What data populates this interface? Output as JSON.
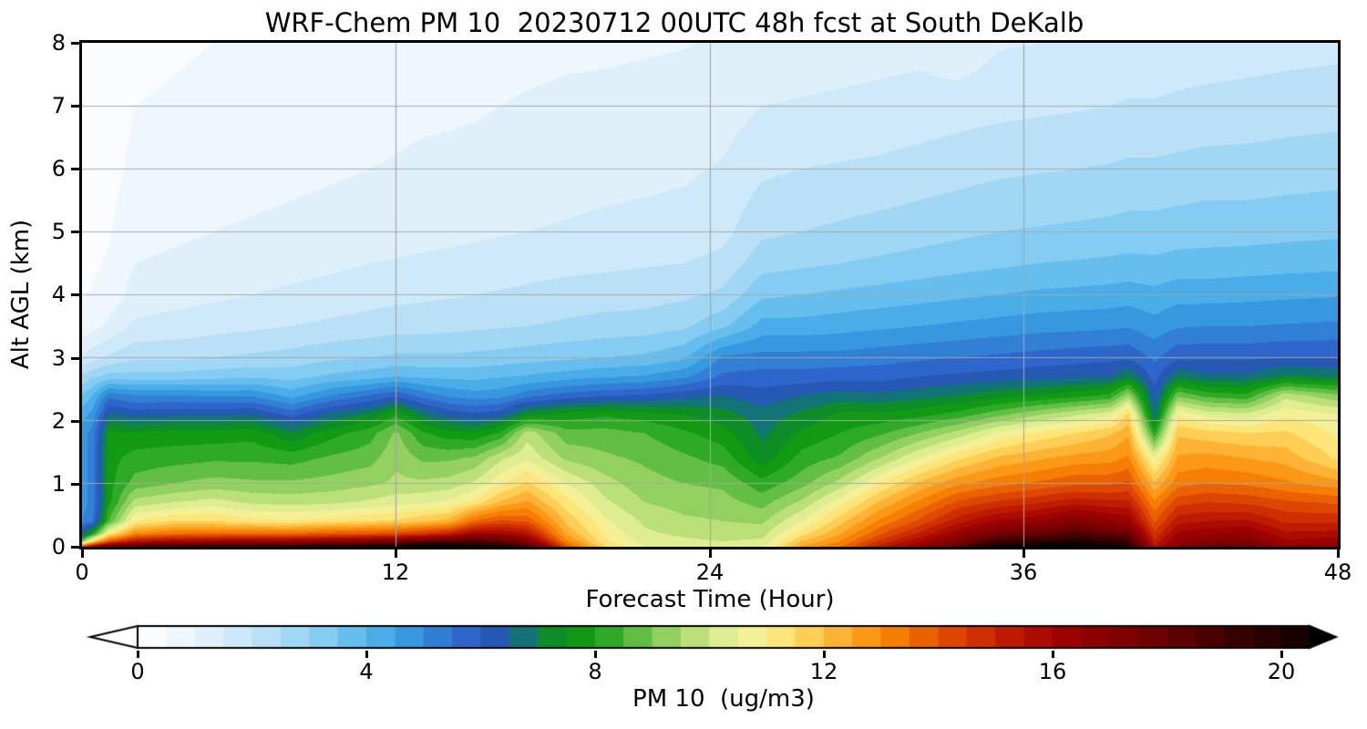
{
  "figure": {
    "title": "WRF-Chem PM 10  20230712 00UTC 48h fcst at South DeKalb"
  },
  "axes": {
    "x": {
      "label": "Forecast Time (Hour)",
      "tick_labels": [
        "0",
        "12",
        "24",
        "36",
        "48"
      ]
    },
    "y": {
      "label": "Alt AGL (km)",
      "tick_labels": [
        "0",
        "1",
        "2",
        "3",
        "4",
        "5",
        "6",
        "7",
        "8"
      ]
    }
  },
  "colorbar": {
    "label": "PM 10  (ug/m3)",
    "tick_labels": [
      "0",
      "4",
      "8",
      "12",
      "16",
      "20"
    ]
  },
  "chart_data": {
    "type": "heatmap",
    "subtype": "filled-contour-time-height",
    "title": "WRF-Chem PM 10  20230712 00UTC 48h fcst at South DeKalb",
    "xlabel": "Forecast Time (Hour)",
    "ylabel": "Alt AGL (km)",
    "xlim": [
      0,
      48
    ],
    "ylim": [
      0,
      8
    ],
    "xticks": [
      0,
      12,
      24,
      36,
      48
    ],
    "yticks": [
      0,
      1,
      2,
      3,
      4,
      5,
      6,
      7,
      8
    ],
    "grid_x": [
      12,
      24,
      36
    ],
    "grid_y": [
      1,
      2,
      3,
      4,
      5,
      6,
      7
    ],
    "colorbar": {
      "label": "PM 10  (ug/m3)",
      "units": "ug/m3",
      "ticks": [
        0,
        4,
        8,
        12,
        16,
        20
      ],
      "vmin": 0,
      "vmax": 20.5,
      "band_width": 0.5,
      "extend": "both"
    },
    "time_hours": [
      0,
      0.4,
      1,
      2,
      3.5,
      5,
      6.5,
      8,
      9.5,
      11,
      12,
      13,
      14,
      15,
      16,
      17,
      18.5,
      20,
      21.5,
      23,
      24.5,
      26,
      27.5,
      29,
      30.5,
      32,
      33.5,
      35,
      36.5,
      38,
      39.3,
      40,
      41,
      41.9,
      43,
      44.5,
      46,
      48
    ],
    "alt_km": [
      0,
      0.08,
      0.2,
      0.4,
      0.7,
      1.0,
      1.4,
      1.8,
      2.1,
      2.4,
      2.7,
      3.0,
      3.5,
      4.0,
      4.5,
      5.0,
      6.0,
      7.0,
      8.0
    ],
    "pm10_ugm3": [
      [
        14.0,
        9.0,
        6.5,
        5.0,
        4.8,
        4.8,
        4.8,
        4.8,
        4.3,
        3.6,
        2.6,
        1.6,
        0.7,
        0.45,
        0.35,
        0.3,
        0.22,
        0.18,
        0.12
      ],
      [
        16.0,
        11.5,
        8.0,
        5.5,
        5.2,
        5.2,
        5.2,
        5.2,
        4.7,
        4.0,
        2.9,
        1.8,
        0.85,
        0.55,
        0.42,
        0.36,
        0.28,
        0.22,
        0.16
      ],
      [
        17.5,
        14.0,
        11.0,
        8.5,
        7.8,
        7.8,
        7.8,
        7.6,
        6.6,
        5.3,
        3.2,
        2.1,
        1.1,
        0.7,
        0.55,
        0.45,
        0.35,
        0.28,
        0.2
      ],
      [
        18.5,
        15.5,
        13.0,
        11.0,
        9.7,
        8.7,
        8.2,
        7.6,
        6.3,
        5.0,
        3.2,
        2.4,
        1.6,
        1.2,
        1.0,
        0.8,
        0.6,
        0.5,
        0.4
      ],
      [
        19.0,
        16.0,
        13.5,
        11.5,
        10.0,
        9.0,
        8.3,
        7.7,
        6.4,
        5.0,
        3.2,
        2.4,
        1.7,
        1.3,
        1.1,
        0.9,
        0.7,
        0.55,
        0.45
      ],
      [
        19.2,
        16.2,
        13.6,
        11.5,
        10.2,
        9.2,
        8.4,
        7.7,
        6.4,
        4.9,
        3.3,
        2.5,
        1.8,
        1.4,
        1.2,
        1.0,
        0.8,
        0.6,
        0.5
      ],
      [
        19.5,
        16.5,
        13.6,
        11.2,
        9.9,
        9.1,
        8.4,
        7.8,
        6.5,
        4.9,
        3.4,
        2.6,
        1.9,
        1.5,
        1.25,
        1.05,
        0.85,
        0.65,
        0.52
      ],
      [
        19.5,
        16.5,
        13.6,
        11.1,
        9.8,
        9.1,
        8.3,
        7.1,
        5.8,
        4.3,
        3.3,
        2.7,
        2.0,
        1.6,
        1.3,
        1.1,
        0.9,
        0.7,
        0.55
      ],
      [
        19.8,
        16.8,
        13.9,
        11.3,
        9.9,
        9.2,
        8.6,
        7.8,
        6.6,
        5.0,
        3.6,
        2.9,
        2.1,
        1.7,
        1.4,
        1.15,
        0.95,
        0.75,
        0.6
      ],
      [
        20.2,
        17.2,
        14.0,
        11.5,
        10.1,
        9.4,
        8.8,
        8.3,
        7.1,
        5.5,
        3.8,
        3.0,
        2.2,
        1.8,
        1.5,
        1.2,
        1.0,
        0.8,
        0.65
      ],
      [
        20.5,
        17.5,
        14.2,
        11.6,
        10.3,
        9.6,
        9.4,
        9.1,
        7.9,
        5.9,
        4.0,
        3.1,
        2.3,
        1.85,
        1.55,
        1.25,
        1.05,
        0.85,
        0.7
      ],
      [
        21.0,
        18.2,
        14.6,
        11.9,
        10.4,
        9.6,
        8.9,
        8.1,
        6.9,
        5.3,
        3.9,
        3.1,
        2.3,
        1.9,
        1.6,
        1.3,
        1.1,
        0.9,
        0.72
      ],
      [
        21.0,
        18.4,
        15.1,
        12.2,
        10.6,
        9.7,
        8.9,
        7.7,
        6.3,
        4.9,
        3.85,
        3.1,
        2.35,
        1.95,
        1.65,
        1.35,
        1.12,
        0.92,
        0.75
      ],
      [
        20.6,
        18.6,
        16.1,
        13.6,
        11.2,
        10.1,
        9.1,
        7.6,
        6.1,
        4.7,
        3.85,
        3.15,
        2.4,
        2.0,
        1.7,
        1.4,
        1.15,
        0.95,
        0.78
      ],
      [
        20.0,
        18.1,
        16.1,
        14.1,
        12.1,
        10.9,
        9.9,
        8.1,
        6.3,
        4.8,
        3.95,
        3.2,
        2.45,
        2.05,
        1.75,
        1.45,
        1.2,
        1.0,
        0.8
      ],
      [
        19.0,
        17.1,
        15.6,
        13.9,
        12.6,
        11.6,
        10.4,
        9.8,
        7.3,
        5.3,
        4.05,
        3.3,
        2.5,
        2.1,
        1.8,
        1.5,
        1.25,
        1.05,
        0.85
      ],
      [
        14.0,
        13.1,
        12.4,
        11.9,
        11.2,
        10.5,
        9.4,
        8.7,
        7.7,
        5.7,
        4.25,
        3.4,
        2.6,
        2.2,
        1.85,
        1.55,
        1.3,
        1.1,
        0.9
      ],
      [
        11.5,
        11.1,
        10.9,
        10.6,
        10.1,
        9.7,
        9.1,
        8.7,
        7.9,
        5.9,
        4.45,
        3.5,
        2.7,
        2.25,
        1.9,
        1.6,
        1.35,
        1.12,
        0.92
      ],
      [
        10.5,
        10.3,
        10.1,
        9.9,
        9.5,
        9.2,
        8.9,
        8.5,
        7.7,
        6.0,
        4.55,
        3.6,
        2.75,
        2.3,
        1.95,
        1.65,
        1.38,
        1.15,
        0.95
      ],
      [
        10.3,
        10.1,
        9.9,
        9.6,
        9.3,
        9.0,
        8.6,
        8.1,
        7.5,
        6.3,
        4.9,
        3.9,
        2.9,
        2.4,
        2.0,
        1.7,
        1.42,
        1.18,
        0.98
      ],
      [
        10.2,
        10.0,
        9.8,
        9.5,
        9.2,
        8.9,
        8.3,
        7.7,
        7.2,
        6.5,
        5.6,
        5.1,
        3.4,
        2.6,
        2.15,
        1.85,
        1.55,
        1.28,
        1.05
      ],
      [
        10.4,
        10.1,
        9.8,
        9.4,
        8.8,
        8.2,
        7.2,
        6.9,
        6.7,
        6.2,
        5.7,
        5.2,
        4.2,
        3.4,
        2.8,
        2.4,
        1.9,
        1.5,
        1.15
      ],
      [
        12.5,
        12.0,
        11.3,
        10.5,
        9.6,
        8.8,
        8.2,
        7.6,
        7.1,
        6.5,
        5.7,
        5.2,
        4.2,
        3.5,
        2.9,
        2.5,
        2.0,
        1.55,
        1.2
      ],
      [
        13.5,
        13.0,
        12.5,
        11.8,
        10.8,
        9.7,
        8.6,
        8.0,
        7.6,
        6.7,
        5.8,
        5.2,
        4.3,
        3.6,
        3.0,
        2.6,
        2.05,
        1.6,
        1.25
      ],
      [
        15.2,
        14.6,
        13.9,
        13.1,
        12.1,
        11.0,
        9.5,
        8.4,
        7.6,
        6.6,
        5.8,
        5.3,
        4.4,
        3.7,
        3.1,
        2.7,
        2.1,
        1.65,
        1.3
      ],
      [
        16.6,
        15.9,
        15.1,
        14.1,
        13.1,
        12.1,
        10.5,
        9.0,
        7.8,
        6.8,
        6.0,
        5.4,
        4.5,
        3.8,
        3.2,
        2.8,
        2.2,
        1.7,
        1.35
      ],
      [
        18.2,
        17.3,
        16.4,
        15.3,
        14.1,
        12.9,
        11.4,
        9.7,
        8.2,
        7.0,
        6.1,
        5.5,
        4.6,
        3.9,
        3.3,
        2.9,
        2.3,
        1.78,
        1.1
      ],
      [
        20.6,
        19.1,
        17.6,
        16.1,
        14.6,
        13.3,
        12.1,
        10.6,
        8.8,
        7.3,
        6.2,
        5.6,
        4.7,
        4.0,
        3.4,
        3.0,
        2.4,
        1.85,
        1.45
      ],
      [
        21.0,
        19.6,
        18.1,
        16.4,
        14.9,
        13.6,
        12.4,
        11.1,
        9.4,
        7.5,
        6.3,
        5.7,
        4.8,
        4.1,
        3.5,
        3.05,
        2.45,
        1.9,
        1.5
      ],
      [
        21.0,
        20.1,
        18.6,
        17.1,
        15.3,
        13.9,
        12.7,
        11.5,
        9.9,
        7.8,
        6.4,
        5.8,
        4.85,
        4.15,
        3.55,
        3.1,
        2.5,
        1.95,
        1.55
      ],
      [
        20.6,
        19.6,
        18.1,
        16.6,
        15.1,
        13.9,
        12.8,
        11.9,
        10.3,
        8.1,
        6.5,
        5.85,
        4.9,
        4.2,
        3.6,
        3.15,
        2.55,
        2.0,
        1.6
      ],
      [
        20.0,
        19.1,
        17.9,
        16.4,
        15.1,
        14.1,
        13.1,
        12.4,
        11.6,
        9.4,
        7.0,
        5.9,
        4.95,
        4.25,
        3.65,
        3.2,
        2.6,
        2.05,
        1.65
      ],
      [
        15.5,
        15.1,
        14.6,
        13.9,
        13.1,
        12.1,
        10.6,
        8.1,
        6.6,
        6.1,
        5.8,
        5.4,
        4.7,
        4.15,
        3.6,
        3.2,
        2.6,
        2.05,
        1.65
      ],
      [
        17.1,
        16.6,
        16.1,
        15.3,
        14.3,
        13.3,
        12.6,
        11.9,
        10.9,
        8.9,
        6.9,
        5.9,
        4.95,
        4.3,
        3.7,
        3.25,
        2.65,
        2.1,
        1.7
      ],
      [
        17.6,
        17.1,
        16.4,
        15.5,
        14.5,
        13.5,
        12.7,
        11.7,
        10.3,
        8.3,
        6.6,
        5.9,
        5.0,
        4.3,
        3.7,
        3.3,
        2.7,
        2.15,
        1.72
      ],
      [
        17.9,
        17.3,
        16.6,
        15.6,
        14.4,
        13.4,
        12.5,
        11.5,
        10.1,
        8.1,
        6.6,
        5.9,
        5.0,
        4.35,
        3.75,
        3.3,
        2.7,
        2.2,
        1.75
      ],
      [
        16.6,
        16.1,
        15.6,
        14.9,
        14.1,
        13.1,
        12.3,
        11.6,
        10.9,
        9.8,
        7.1,
        6.0,
        5.05,
        4.4,
        3.8,
        3.35,
        2.75,
        2.25,
        1.8
      ],
      [
        16.9,
        16.3,
        15.7,
        14.9,
        13.9,
        12.7,
        11.4,
        10.9,
        10.5,
        9.1,
        6.9,
        6.0,
        5.1,
        4.45,
        3.85,
        3.4,
        2.8,
        2.3,
        1.85
      ]
    ],
    "colormap_stops": [
      [
        0,
        "#ffffff"
      ],
      [
        0.5,
        "#f5fafe"
      ],
      [
        1,
        "#e8f4fc"
      ],
      [
        1.5,
        "#d8edfa"
      ],
      [
        2,
        "#c5e5f8"
      ],
      [
        2.5,
        "#aedcf6"
      ],
      [
        3,
        "#93d2f3"
      ],
      [
        3.5,
        "#76c6f0"
      ],
      [
        4,
        "#57b7ec"
      ],
      [
        4.5,
        "#3da3e4"
      ],
      [
        5,
        "#338cda"
      ],
      [
        5.5,
        "#2f73d0"
      ],
      [
        6,
        "#2c5ac6"
      ],
      [
        6.4,
        "#2258a8"
      ],
      [
        6.7,
        "#147082"
      ],
      [
        7,
        "#0a8741"
      ],
      [
        7.5,
        "#0f9310"
      ],
      [
        8,
        "#16a016"
      ],
      [
        8.5,
        "#47b437"
      ],
      [
        9,
        "#7cc853"
      ],
      [
        9.5,
        "#a8d96c"
      ],
      [
        10,
        "#cfe886"
      ],
      [
        10.5,
        "#eef29e"
      ],
      [
        11,
        "#fbee8e"
      ],
      [
        11.5,
        "#ffdc67"
      ],
      [
        12,
        "#ffc043"
      ],
      [
        12.5,
        "#ffa426"
      ],
      [
        13,
        "#fb8b07"
      ],
      [
        13.5,
        "#f07000"
      ],
      [
        14,
        "#e45400"
      ],
      [
        14.5,
        "#d63a00"
      ],
      [
        15,
        "#c62400"
      ],
      [
        15.5,
        "#b51200"
      ],
      [
        16,
        "#a40600"
      ],
      [
        16.5,
        "#950000"
      ],
      [
        17,
        "#860000"
      ],
      [
        17.5,
        "#760000"
      ],
      [
        18,
        "#650000"
      ],
      [
        18.5,
        "#540000"
      ],
      [
        19,
        "#420000"
      ],
      [
        19.5,
        "#310000"
      ],
      [
        20,
        "#200000"
      ],
      [
        20.5,
        "#100000"
      ],
      [
        21,
        "#000000"
      ]
    ],
    "grid_color": "#aaaaaa",
    "spine_color": "#000000",
    "background_color": "#ffffff"
  }
}
